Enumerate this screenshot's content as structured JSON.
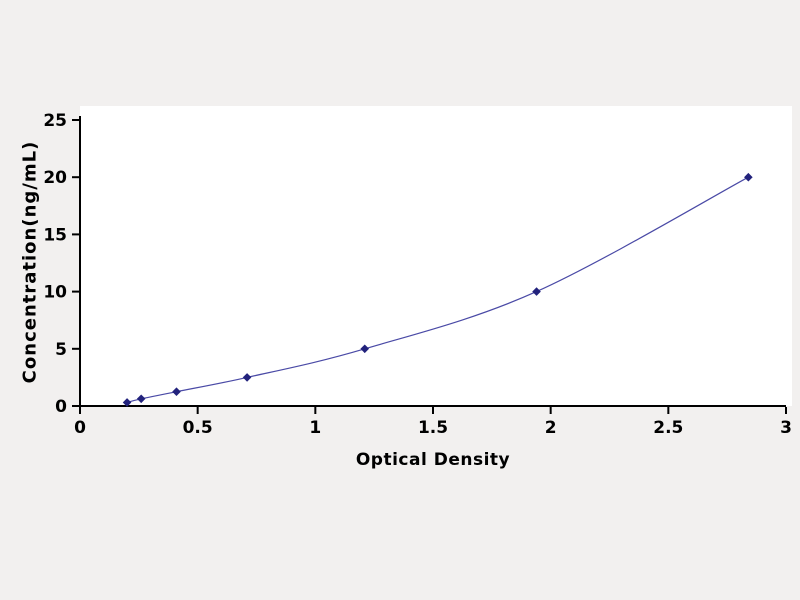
{
  "page": {
    "background": "#f2f0ef",
    "plot_background": "#ffffff"
  },
  "chart_data": {
    "type": "line",
    "title": "",
    "xlabel": "Optical Density",
    "ylabel": "Concentration(ng/mL)",
    "xlim": [
      0,
      3
    ],
    "ylim": [
      0,
      25
    ],
    "x_ticks": [
      0,
      0.5,
      1,
      1.5,
      2,
      2.5,
      3
    ],
    "x_tick_labels": [
      "0",
      "0.5",
      "1",
      "1.5",
      "2",
      "2.5",
      "3"
    ],
    "y_ticks": [
      0,
      5,
      10,
      15,
      20,
      25
    ],
    "y_tick_labels": [
      "0",
      "5",
      "10",
      "15",
      "20",
      "25"
    ],
    "grid": false,
    "legend": "none",
    "axis_color": "#000000",
    "series": [
      {
        "name": "standard-curve",
        "marker": "diamond",
        "line_color": "#4a4aa6",
        "marker_color": "#22227c",
        "x": [
          0.2,
          0.26,
          0.41,
          0.71,
          1.21,
          1.94,
          2.84
        ],
        "y": [
          0.31,
          0.63,
          1.25,
          2.5,
          5,
          10,
          20
        ]
      }
    ]
  }
}
